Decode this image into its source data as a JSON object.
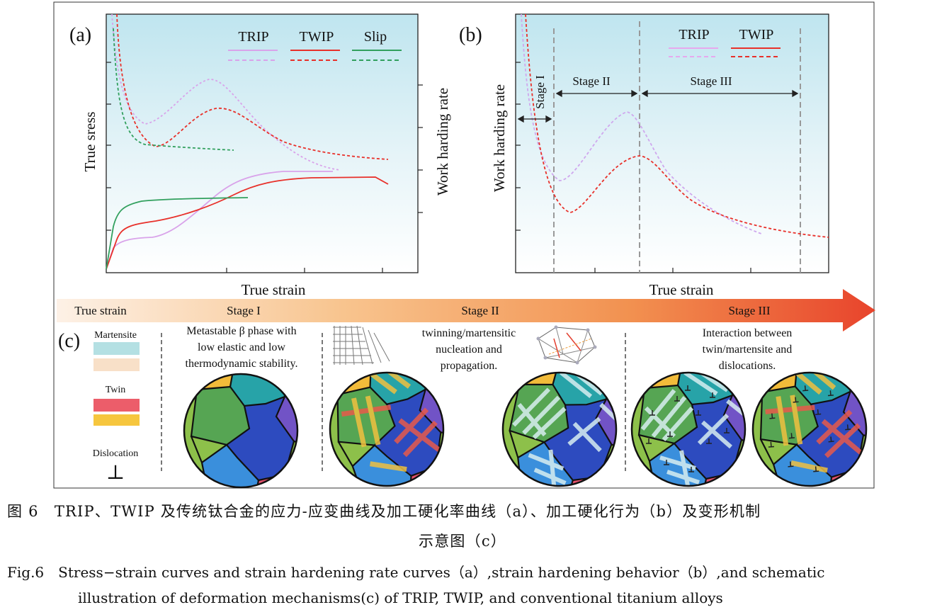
{
  "figure": {
    "panel_a": {
      "label": "(a)",
      "ylabel": "True sress",
      "xlabel": "True strain",
      "legend": [
        {
          "name": "TRIP",
          "color": "#d9a3ea"
        },
        {
          "name": "TWIP",
          "color": "#e8302a"
        },
        {
          "name": "Slip",
          "color": "#32a05e"
        }
      ]
    },
    "mid_ylabel": "Work harding rate",
    "panel_b": {
      "label": "(b)",
      "ylabel": "Work harding rate",
      "xlabel": "True strain",
      "legend": [
        {
          "name": "TRIP",
          "color": "#e6a8ee"
        },
        {
          "name": "TWIP",
          "color": "#e8302a"
        }
      ],
      "stages": [
        "Stage I",
        "Stage II",
        "Stage III"
      ]
    },
    "arrow_band": {
      "label": "True strain",
      "stages": [
        "Stage I",
        "Stage II",
        "Stage III"
      ]
    },
    "panel_c": {
      "label": "(c)",
      "legend": {
        "martensite": "Martensite",
        "twin": "Twin",
        "dislocation": "Dislocation",
        "dislocation_symbol": "⊥"
      },
      "stage1_text": [
        "Metastable β phase with",
        "low elastic and low",
        "thermodynamic stability."
      ],
      "stage2_text": [
        "twinning/martensitic",
        "nucleation and",
        "propagation."
      ],
      "stage3_text": [
        "Interaction between",
        "twin/martensite and",
        "dislocations."
      ]
    }
  },
  "caption": {
    "zh_line1": "图 6　TRIP、TWIP 及传统钛合金的应力-应变曲线及加工硬化率曲线（a）、加工硬化行为（b）及变形机制",
    "zh_line2": "示意图（c）",
    "en_line1": "Fig.6　Stress−strain curves and strain hardening rate curves（a）,strain hardening behavior（b）,and schematic",
    "en_line2": "illustration of deformation mechanisms(c) of TRIP, TWIP, and conventional titanium alloys"
  }
}
